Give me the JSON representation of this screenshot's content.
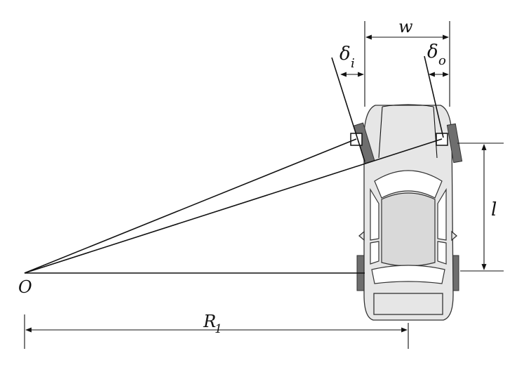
{
  "diagram": {
    "labels": {
      "track_width": "w",
      "inner_steer_angle_symbol": "δ",
      "inner_steer_angle_subscript": "i",
      "outer_steer_angle_symbol": "δ",
      "outer_steer_angle_subscript": "o",
      "wheelbase": "l",
      "turn_center": "O",
      "turn_radius_symbol": "R",
      "turn_radius_subscript": "1"
    },
    "colors": {
      "line": "#111111",
      "car_body": "#e6e6e6",
      "tire": "#6e6e6e"
    }
  }
}
